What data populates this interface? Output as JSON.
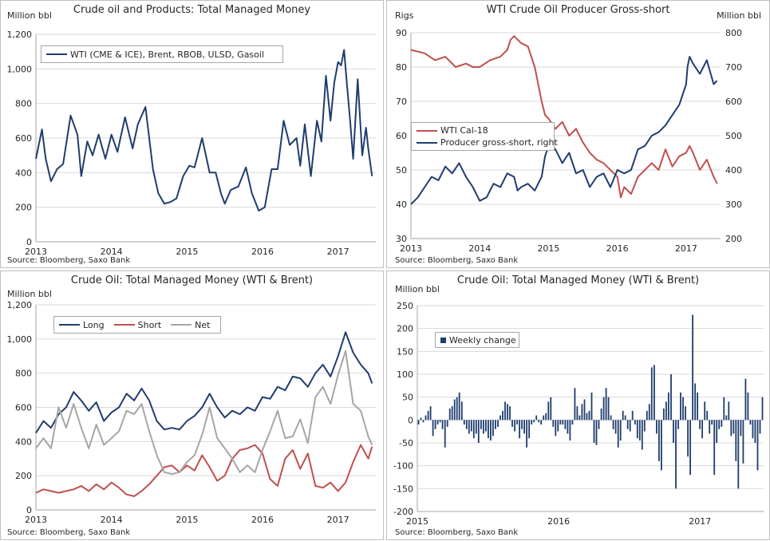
{
  "source_text": "Source: Bloomberg, Saxo Bank",
  "colors": {
    "navy": "#1f3d6e",
    "red": "#c0504d",
    "gray": "#a6a6a6",
    "grid": "#d9d9d9",
    "axis": "#a6a6a6"
  },
  "chart_data": [
    {
      "id": "c1",
      "type": "line",
      "title": "Crude oil and Products: Total Managed Money",
      "ylabel": "Million bbl",
      "ylim": [
        0,
        1200
      ],
      "yticks": [
        "0",
        "200",
        "400",
        "600",
        "800",
        "1,000",
        "1,200"
      ],
      "xlim": [
        2013.0,
        2017.5
      ],
      "xticks": [
        "2013",
        "2014",
        "2015",
        "2016",
        "2017"
      ],
      "series": [
        {
          "name": "WTI (CME & ICE), Brent, RBOB, ULSD, Gasoil",
          "x": [
            2013.0,
            2013.08,
            2013.13,
            2013.2,
            2013.28,
            2013.36,
            2013.46,
            2013.55,
            2013.6,
            2013.68,
            2013.75,
            2013.83,
            2013.92,
            2014.0,
            2014.08,
            2014.18,
            2014.28,
            2014.35,
            2014.45,
            2014.5,
            2014.55,
            2014.62,
            2014.7,
            2014.78,
            2014.86,
            2014.95,
            2015.03,
            2015.1,
            2015.2,
            2015.3,
            2015.38,
            2015.45,
            2015.5,
            2015.58,
            2015.68,
            2015.78,
            2015.86,
            2015.95,
            2016.03,
            2016.12,
            2016.2,
            2016.28,
            2016.36,
            2016.45,
            2016.5,
            2016.56,
            2016.64,
            2016.72,
            2016.78,
            2016.84,
            2016.9,
            2016.95,
            2017.0,
            2017.04,
            2017.08,
            2017.12,
            2017.16,
            2017.2,
            2017.26,
            2017.32,
            2017.37,
            2017.4,
            2017.45
          ],
          "y": [
            480,
            650,
            480,
            350,
            420,
            450,
            730,
            620,
            380,
            580,
            500,
            620,
            480,
            620,
            520,
            720,
            540,
            680,
            780,
            600,
            420,
            280,
            220,
            230,
            250,
            380,
            440,
            430,
            600,
            400,
            400,
            280,
            220,
            300,
            320,
            430,
            280,
            180,
            200,
            420,
            420,
            700,
            560,
            600,
            440,
            680,
            380,
            700,
            580,
            960,
            700,
            920,
            1040,
            1020,
            1110,
            900,
            700,
            480,
            940,
            500,
            660,
            540,
            380
          ]
        }
      ]
    },
    {
      "id": "c2",
      "type": "line",
      "title": "WTI Crude Oil Producer Gross-short",
      "ylabel": "Rigs",
      "ylabel_right": "Million bbl",
      "ylim": [
        30,
        90
      ],
      "yticks": [
        "30",
        "40",
        "50",
        "60",
        "70",
        "80",
        "90"
      ],
      "ylim_right": [
        200,
        800
      ],
      "yticks_right": [
        "200",
        "300",
        "400",
        "500",
        "600",
        "700",
        "800"
      ],
      "xlim": [
        2013.0,
        2017.5
      ],
      "xticks": [
        "2013",
        "2014",
        "2015",
        "2016",
        "2017"
      ],
      "series": [
        {
          "name": "WTI Cal-18",
          "axis": "left",
          "x": [
            2013.0,
            2013.2,
            2013.35,
            2013.5,
            2013.65,
            2013.8,
            2013.9,
            2014.0,
            2014.15,
            2014.3,
            2014.4,
            2014.45,
            2014.5,
            2014.6,
            2014.7,
            2014.8,
            2014.85,
            2014.9,
            2014.95,
            2015.0,
            2015.1,
            2015.2,
            2015.3,
            2015.4,
            2015.5,
            2015.6,
            2015.7,
            2015.8,
            2015.9,
            2016.0,
            2016.05,
            2016.1,
            2016.2,
            2016.3,
            2016.4,
            2016.5,
            2016.6,
            2016.7,
            2016.8,
            2016.9,
            2017.0,
            2017.05,
            2017.1,
            2017.2,
            2017.3,
            2017.4,
            2017.45
          ],
          "y": [
            85,
            84,
            82,
            83,
            80,
            81,
            80,
            80,
            82,
            83,
            85,
            88,
            89,
            87,
            86,
            80,
            75,
            70,
            66,
            65,
            62,
            64,
            60,
            62,
            58,
            55,
            53,
            52,
            50,
            48,
            42,
            45,
            43,
            48,
            50,
            52,
            50,
            56,
            51,
            54,
            55,
            57,
            55,
            50,
            53,
            48,
            46
          ]
        },
        {
          "name": "Producer gross-short, right",
          "axis": "right",
          "x": [
            2013.0,
            2013.1,
            2013.2,
            2013.3,
            2013.4,
            2013.5,
            2013.6,
            2013.7,
            2013.8,
            2013.9,
            2014.0,
            2014.1,
            2014.2,
            2014.3,
            2014.4,
            2014.5,
            2014.55,
            2014.6,
            2014.7,
            2014.8,
            2014.9,
            2014.95,
            2015.0,
            2015.1,
            2015.2,
            2015.3,
            2015.4,
            2015.5,
            2015.6,
            2015.7,
            2015.8,
            2015.9,
            2016.0,
            2016.1,
            2016.2,
            2016.3,
            2016.4,
            2016.5,
            2016.6,
            2016.7,
            2016.8,
            2016.9,
            2017.0,
            2017.02,
            2017.05,
            2017.1,
            2017.2,
            2017.3,
            2017.4,
            2017.45
          ],
          "y": [
            300,
            320,
            350,
            380,
            370,
            410,
            390,
            420,
            380,
            350,
            310,
            320,
            360,
            350,
            390,
            380,
            340,
            350,
            360,
            340,
            380,
            440,
            470,
            460,
            420,
            450,
            390,
            400,
            350,
            380,
            390,
            350,
            400,
            390,
            400,
            460,
            470,
            500,
            510,
            530,
            560,
            590,
            650,
            700,
            730,
            710,
            680,
            720,
            650,
            660
          ]
        }
      ]
    },
    {
      "id": "c3",
      "type": "line",
      "title": "Crude Oil: Total Managed Money (WTI & Brent)",
      "ylabel": "Million bbl",
      "ylim": [
        0,
        1200
      ],
      "yticks": [
        "0",
        "200",
        "400",
        "600",
        "800",
        "1,000",
        "1,200"
      ],
      "xlim": [
        2013.0,
        2017.5
      ],
      "xticks": [
        "2013",
        "2014",
        "2015",
        "2016",
        "2017"
      ],
      "series": [
        {
          "name": "Long",
          "color": "#1f3d6e",
          "x": [
            2013.0,
            2013.1,
            2013.2,
            2013.3,
            2013.4,
            2013.5,
            2013.6,
            2013.7,
            2013.8,
            2013.9,
            2014.0,
            2014.1,
            2014.2,
            2014.3,
            2014.4,
            2014.5,
            2014.6,
            2014.7,
            2014.8,
            2014.9,
            2015.0,
            2015.1,
            2015.2,
            2015.3,
            2015.4,
            2015.5,
            2015.6,
            2015.7,
            2015.8,
            2015.9,
            2016.0,
            2016.1,
            2016.2,
            2016.3,
            2016.4,
            2016.5,
            2016.6,
            2016.7,
            2016.8,
            2016.9,
            2017.0,
            2017.05,
            2017.1,
            2017.2,
            2017.3,
            2017.4,
            2017.45
          ],
          "y": [
            450,
            520,
            480,
            560,
            600,
            690,
            640,
            580,
            630,
            520,
            570,
            600,
            680,
            640,
            710,
            640,
            520,
            470,
            480,
            470,
            520,
            550,
            600,
            680,
            600,
            540,
            580,
            560,
            600,
            580,
            660,
            650,
            720,
            700,
            780,
            770,
            720,
            800,
            850,
            780,
            900,
            970,
            1040,
            920,
            850,
            800,
            740
          ]
        },
        {
          "name": "Short",
          "color": "#c0504d",
          "x": [
            2013.0,
            2013.1,
            2013.2,
            2013.3,
            2013.4,
            2013.5,
            2013.6,
            2013.7,
            2013.8,
            2013.9,
            2014.0,
            2014.1,
            2014.2,
            2014.3,
            2014.4,
            2014.5,
            2014.6,
            2014.7,
            2014.8,
            2014.9,
            2015.0,
            2015.1,
            2015.2,
            2015.3,
            2015.4,
            2015.5,
            2015.6,
            2015.7,
            2015.8,
            2015.9,
            2016.0,
            2016.1,
            2016.2,
            2016.3,
            2016.4,
            2016.5,
            2016.6,
            2016.7,
            2016.8,
            2016.9,
            2017.0,
            2017.1,
            2017.2,
            2017.3,
            2017.4,
            2017.45
          ],
          "y": [
            100,
            120,
            110,
            100,
            110,
            120,
            140,
            110,
            150,
            120,
            160,
            130,
            90,
            80,
            110,
            150,
            200,
            250,
            260,
            220,
            260,
            230,
            320,
            250,
            170,
            200,
            300,
            350,
            360,
            380,
            330,
            180,
            140,
            300,
            350,
            240,
            330,
            140,
            130,
            160,
            110,
            160,
            280,
            380,
            300,
            370
          ]
        },
        {
          "name": "Net",
          "color": "#a6a6a6",
          "x": [
            2013.0,
            2013.1,
            2013.2,
            2013.3,
            2013.4,
            2013.5,
            2013.6,
            2013.7,
            2013.8,
            2013.9,
            2014.0,
            2014.1,
            2014.2,
            2014.3,
            2014.4,
            2014.5,
            2014.6,
            2014.7,
            2014.8,
            2014.9,
            2015.0,
            2015.1,
            2015.2,
            2015.3,
            2015.4,
            2015.5,
            2015.6,
            2015.7,
            2015.8,
            2015.9,
            2016.0,
            2016.1,
            2016.2,
            2016.3,
            2016.4,
            2016.5,
            2016.6,
            2016.7,
            2016.8,
            2016.9,
            2017.0,
            2017.05,
            2017.1,
            2017.2,
            2017.3,
            2017.4,
            2017.45
          ],
          "y": [
            360,
            420,
            360,
            600,
            480,
            620,
            480,
            360,
            500,
            380,
            420,
            460,
            580,
            560,
            620,
            460,
            320,
            220,
            210,
            220,
            280,
            320,
            440,
            600,
            420,
            360,
            300,
            220,
            260,
            220,
            350,
            460,
            580,
            420,
            430,
            530,
            390,
            660,
            720,
            620,
            790,
            860,
            930,
            620,
            580,
            430,
            380
          ]
        }
      ]
    },
    {
      "id": "c4",
      "type": "bar",
      "title": "Crude Oil: Total Managed Money (WTI & Brent)",
      "ylabel": "Million bbl",
      "ylim": [
        -200,
        250
      ],
      "yticks": [
        "-200",
        "-150",
        "-100",
        "-50",
        "0",
        "50",
        "100",
        "150",
        "200",
        "250"
      ],
      "xlim": [
        2015.0,
        2017.45
      ],
      "xticks": [
        "2015",
        "2016",
        "2017"
      ],
      "series": [
        {
          "name": "Weekly change",
          "values": [
            -10,
            5,
            -5,
            10,
            20,
            30,
            -35,
            -20,
            -10,
            -5,
            -20,
            -60,
            -15,
            25,
            30,
            45,
            50,
            60,
            40,
            -10,
            -20,
            -30,
            -25,
            -40,
            -30,
            -50,
            -20,
            -30,
            -25,
            -40,
            -45,
            -35,
            -20,
            -15,
            10,
            20,
            40,
            35,
            30,
            -15,
            -25,
            -10,
            -40,
            -20,
            -30,
            -60,
            -40,
            -10,
            -5,
            10,
            -5,
            -10,
            10,
            15,
            40,
            50,
            -15,
            -35,
            -25,
            -10,
            -10,
            -20,
            -30,
            -45,
            -10,
            70,
            30,
            10,
            35,
            45,
            15,
            20,
            60,
            -50,
            -55,
            -20,
            25,
            50,
            70,
            50,
            10,
            -20,
            -30,
            -60,
            -45,
            20,
            10,
            -20,
            -25,
            20,
            -10,
            -40,
            -45,
            -65,
            -25,
            20,
            35,
            115,
            120,
            -30,
            -90,
            -110,
            25,
            40,
            60,
            100,
            -50,
            -150,
            -20,
            60,
            50,
            30,
            -80,
            -120,
            230,
            80,
            60,
            -20,
            -40,
            40,
            20,
            -30,
            -10,
            -120,
            -50,
            -20,
            -15,
            50,
            10,
            40,
            -35,
            -30,
            -90,
            -150,
            -35,
            -95,
            90,
            60,
            -10,
            -40,
            -50,
            -110,
            -30,
            50
          ]
        }
      ]
    }
  ]
}
